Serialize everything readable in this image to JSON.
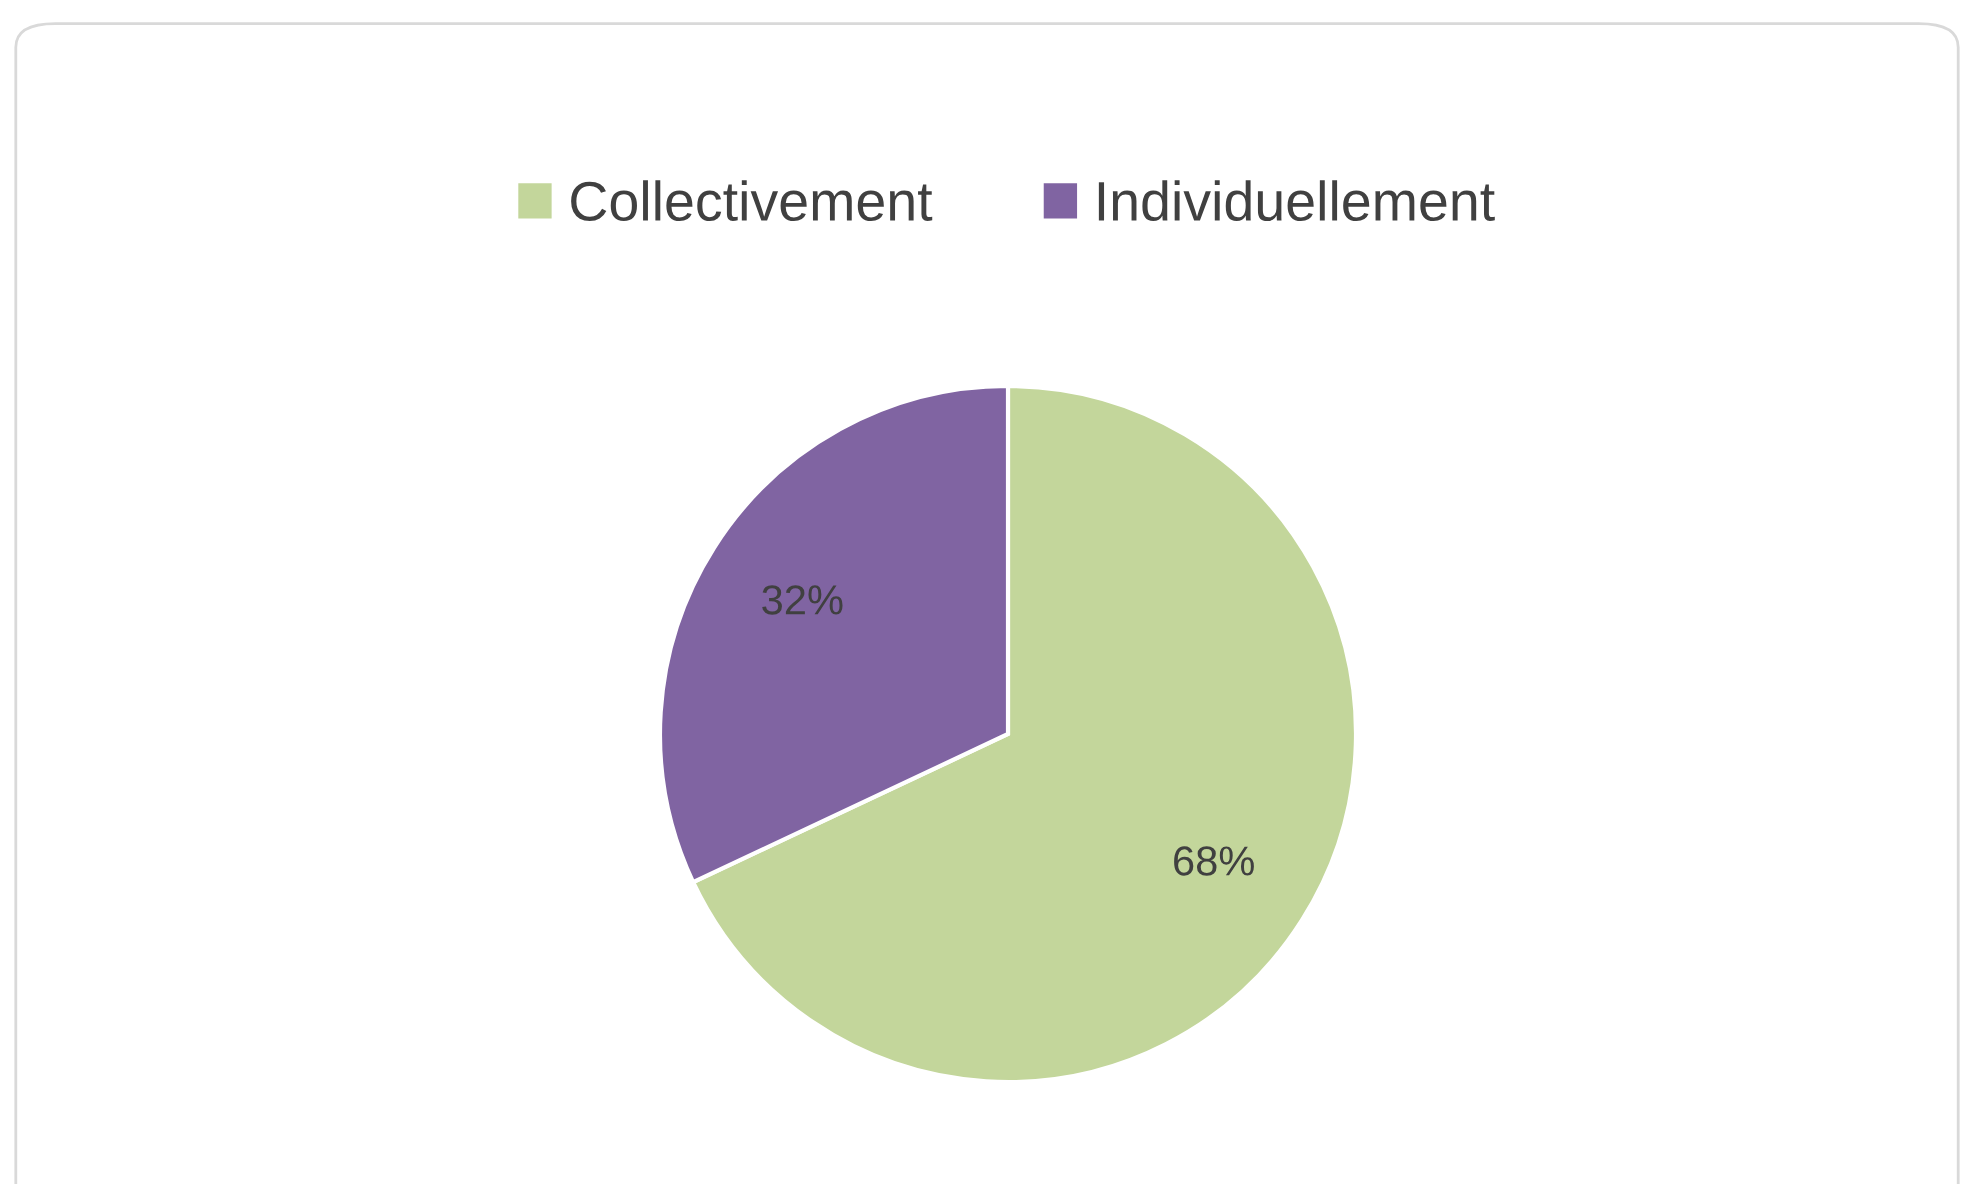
{
  "chart_data": {
    "type": "pie",
    "categories": [
      "Collectivement",
      "Individuellement"
    ],
    "values": [
      68,
      32
    ],
    "colors": [
      "#c3d69b",
      "#8064a2"
    ],
    "value_labels": [
      "68%",
      "32%"
    ],
    "legend": "top"
  }
}
